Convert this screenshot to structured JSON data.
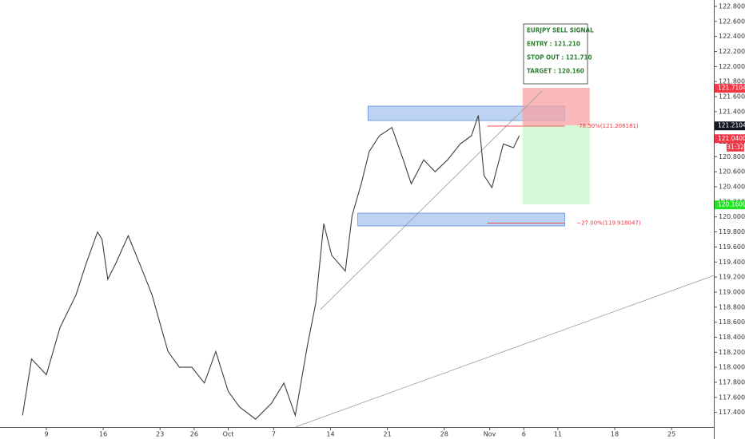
{
  "chart_data": {
    "type": "line",
    "series": [
      {
        "name": "EURJPY",
        "color": "#3d3d3d",
        "x": [
          -2.1,
          -1.3,
          0,
          1.2,
          2.6,
          3.5,
          4.5,
          4.9,
          5.4,
          6.1,
          7.2,
          8.2,
          9.3,
          10.1,
          10.7,
          11.7,
          12.8,
          13.9,
          14.9,
          16.0,
          17.0,
          18.4,
          19.8,
          20.9,
          21.9,
          23.0,
          23.7,
          24.4,
          25.1,
          26.3,
          26.9,
          27.7,
          28.4,
          29.3,
          30.4,
          31.4,
          32.1,
          33.2,
          34.2,
          35.3,
          36.4,
          37.4,
          38.0,
          38.5,
          39.2,
          40.2,
          41.1,
          41.6
        ],
        "values": [
          117.36,
          118.11,
          117.9,
          118.53,
          118.96,
          119.38,
          119.8,
          119.7,
          119.17,
          119.38,
          119.75,
          119.38,
          118.96,
          118.53,
          118.21,
          118.0,
          118.0,
          117.79,
          118.21,
          117.68,
          117.47,
          117.31,
          117.52,
          117.79,
          117.36,
          118.32,
          118.85,
          119.91,
          119.49,
          119.28,
          120.02,
          120.44,
          120.87,
          121.08,
          121.19,
          120.76,
          120.44,
          120.76,
          120.6,
          120.76,
          120.97,
          121.08,
          121.35,
          120.55,
          120.39,
          120.97,
          120.92,
          121.08
        ]
      }
    ],
    "xlim": [
      -4.08,
      58.72
    ],
    "ylim": [
      117.205,
      122.885
    ],
    "xticks": [
      {
        "value": 0,
        "label": "9"
      },
      {
        "value": 5,
        "label": "16"
      },
      {
        "value": 10,
        "label": "23"
      },
      {
        "value": 13,
        "label": "26"
      },
      {
        "value": 16,
        "label": "Oct"
      },
      {
        "value": 20,
        "label": "7"
      },
      {
        "value": 25,
        "label": "14"
      },
      {
        "value": 30,
        "label": "21"
      },
      {
        "value": 35,
        "label": "28"
      },
      {
        "value": 39,
        "label": "Nov"
      },
      {
        "value": 42,
        "label": "6"
      },
      {
        "value": 45,
        "label": "11"
      },
      {
        "value": 50,
        "label": "18"
      },
      {
        "value": 55,
        "label": "25"
      }
    ],
    "yticks": [
      {
        "value": 117.4,
        "label": "117.400000"
      },
      {
        "value": 117.6,
        "label": "117.600000"
      },
      {
        "value": 117.8,
        "label": "117.800000"
      },
      {
        "value": 118.0,
        "label": "118.000000"
      },
      {
        "value": 118.2,
        "label": "118.200000"
      },
      {
        "value": 118.4,
        "label": "118.400000"
      },
      {
        "value": 118.6,
        "label": "118.600000"
      },
      {
        "value": 118.8,
        "label": "118.800000"
      },
      {
        "value": 119.0,
        "label": "119.000000"
      },
      {
        "value": 119.2,
        "label": "119.200000"
      },
      {
        "value": 119.4,
        "label": "119.400000"
      },
      {
        "value": 119.6,
        "label": "119.600000"
      },
      {
        "value": 119.8,
        "label": "119.800000"
      },
      {
        "value": 120.0,
        "label": "120.000000"
      },
      {
        "value": 120.2,
        "label": "120.200000"
      },
      {
        "value": 120.4,
        "label": "120.400000"
      },
      {
        "value": 120.6,
        "label": "120.600000"
      },
      {
        "value": 120.8,
        "label": "120.800000"
      },
      {
        "value": 121.0,
        "label": "121.000000"
      },
      {
        "value": 121.2,
        "label": "121.200000"
      },
      {
        "value": 121.4,
        "label": "121.400000"
      },
      {
        "value": 121.6,
        "label": "121.600000"
      },
      {
        "value": 121.8,
        "label": "121.800000"
      },
      {
        "value": 122.0,
        "label": "122.000000"
      },
      {
        "value": 122.2,
        "label": "122.200000"
      },
      {
        "value": 122.4,
        "label": "122.400000"
      },
      {
        "value": 122.6,
        "label": "122.600000"
      },
      {
        "value": 122.8,
        "label": "122.800000"
      }
    ],
    "zones": [
      {
        "x": [
          28.3,
          45.6
        ],
        "y": [
          121.282,
          121.473
        ],
        "color": "#a8c4ef"
      },
      {
        "x": [
          27.4,
          45.6
        ],
        "y": [
          119.88,
          120.05
        ],
        "color": "#a8c4ef"
      },
      {
        "x": [
          41.9,
          47.8
        ],
        "y": [
          121.218,
          121.717
        ],
        "color": "#f7a1a4"
      },
      {
        "x": [
          41.9,
          47.8
        ],
        "y": [
          120.167,
          121.218
        ],
        "color": "#c8f5c8"
      }
    ],
    "trend_lines": [
      {
        "x": [
          24.1,
          43.6
        ],
        "y": [
          118.766,
          121.675
        ]
      },
      {
        "x": [
          21.9,
          58.7
        ],
        "y": [
          117.205,
          119.22
        ]
      }
    ],
    "fib_levels": [
      {
        "x": [
          38.8,
          45.6
        ],
        "value": 121.208181,
        "label": "78.50%(121.208181)"
      },
      {
        "x": [
          38.8,
          45.6
        ],
        "value": 119.918047,
        "label": "−27.00%(119.918047)"
      }
    ],
    "price_labels": [
      {
        "value": 121.710429,
        "label": "121.710429",
        "color": "#f23645"
      },
      {
        "value": 121.210429,
        "label": "121.210429",
        "color": "#131722"
      },
      {
        "value": 121.04,
        "label": "121.040000",
        "color": "#f23645"
      },
      {
        "value": 120.16,
        "label": "120.160000",
        "color": "#22e422"
      }
    ],
    "countdown": "31:32",
    "signal": [
      "EURJPY SELL SIGNAL",
      "ENTRY : 121.210",
      "STOP OUT : 121.710",
      "TARGET : 120.160"
    ]
  }
}
